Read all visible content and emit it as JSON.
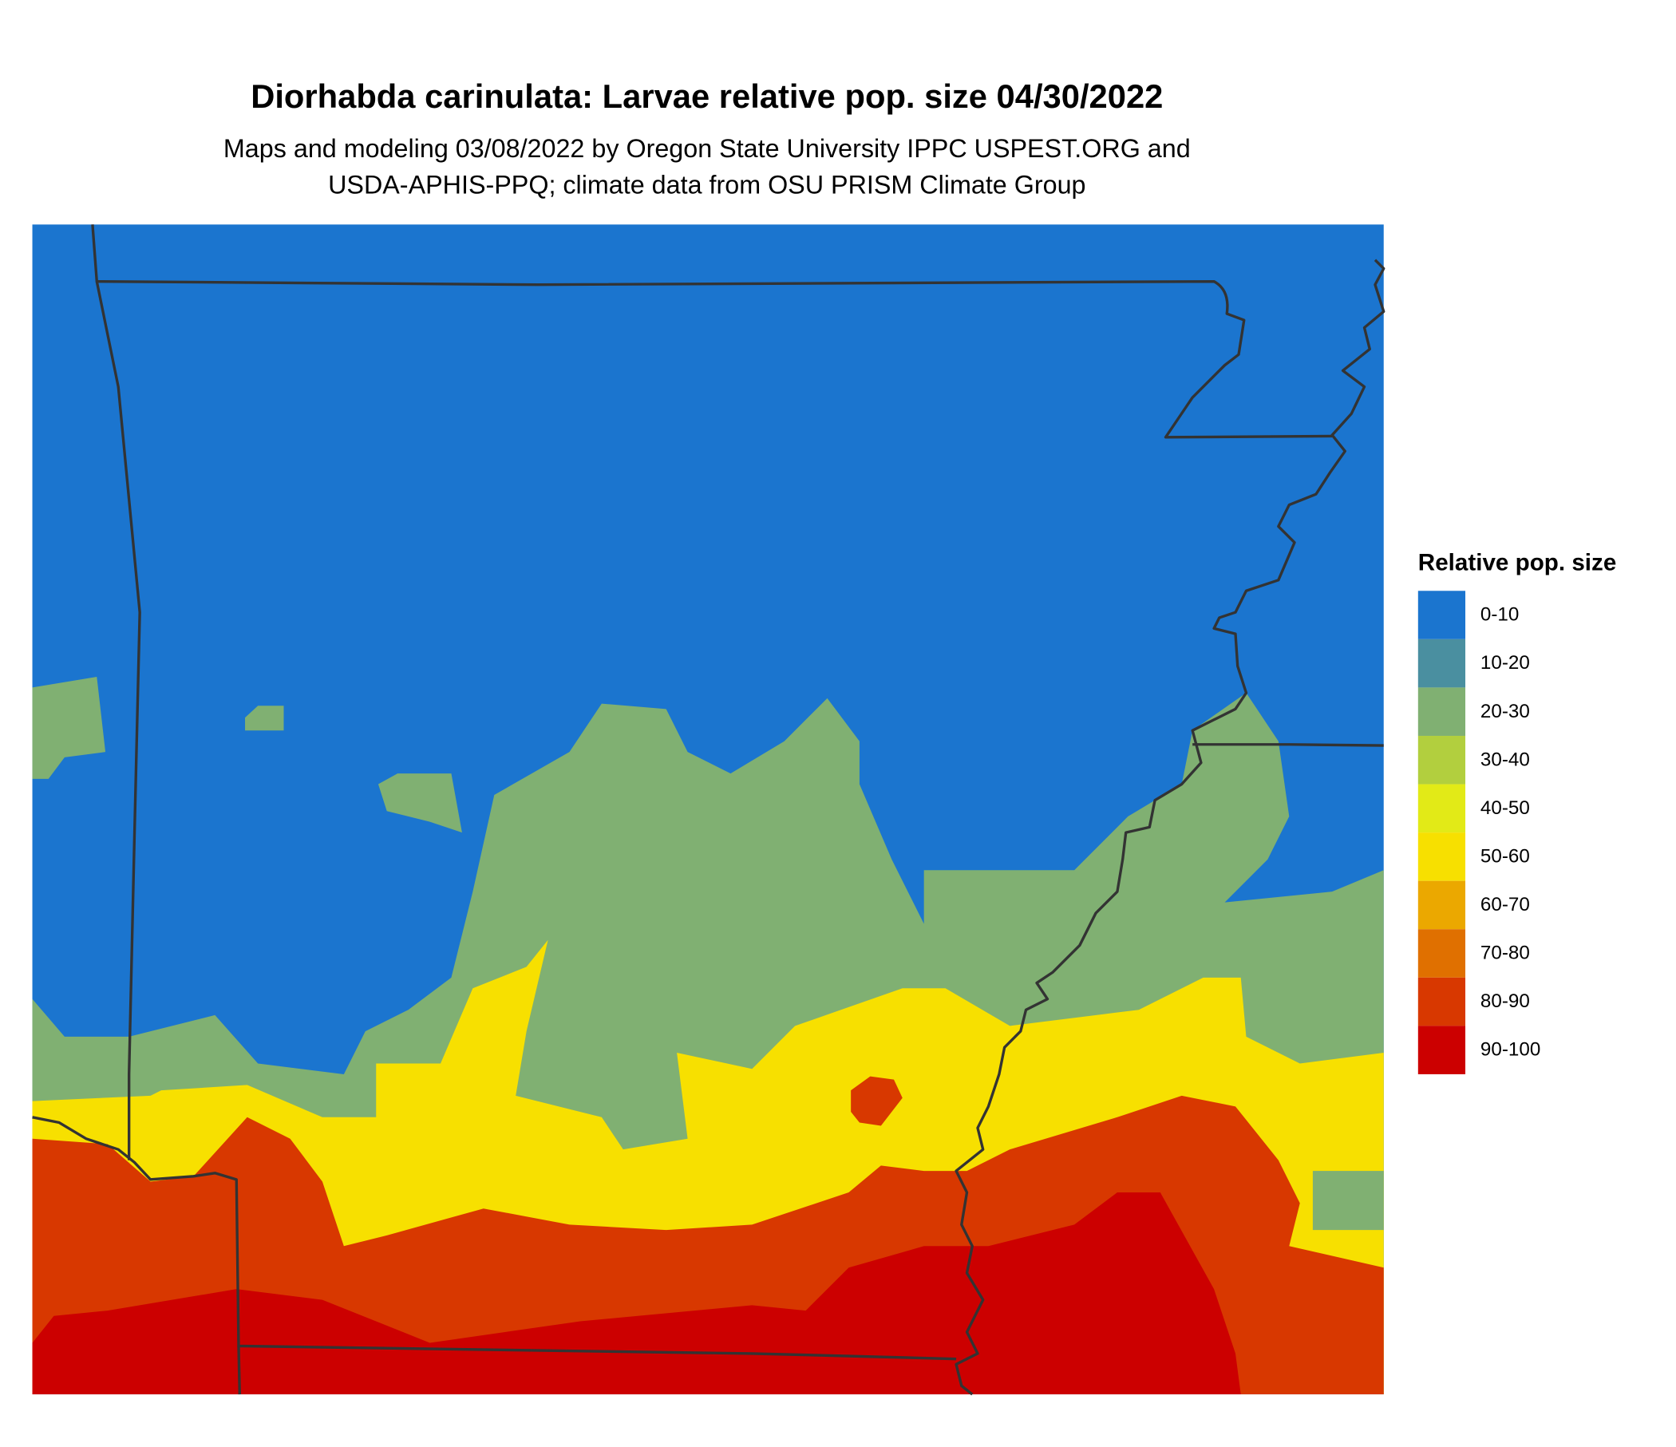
{
  "title": "Diorhabda carinulata: Larvae relative pop. size 04/30/2022",
  "subtitle": [
    "Maps and modeling 03/08/2022 by Oregon State University IPPC USPEST.ORG and",
    "USDA-APHIS-PPQ; climate data from OSU PRISM Climate Group"
  ],
  "legend": {
    "title": "Relative pop. size",
    "items": [
      {
        "label": "0-10",
        "color": "#1b75cf"
      },
      {
        "label": "10-20",
        "color": "#4a8fa0"
      },
      {
        "label": "20-30",
        "color": "#80b072"
      },
      {
        "label": "30-40",
        "color": "#b2cf3e"
      },
      {
        "label": "40-50",
        "color": "#e2ea17"
      },
      {
        "label": "50-60",
        "color": "#f7e000"
      },
      {
        "label": "60-70",
        "color": "#eba800"
      },
      {
        "label": "70-80",
        "color": "#e07000"
      },
      {
        "label": "80-90",
        "color": "#d83800"
      },
      {
        "label": "90-100",
        "color": "#cc0000"
      }
    ]
  }
}
